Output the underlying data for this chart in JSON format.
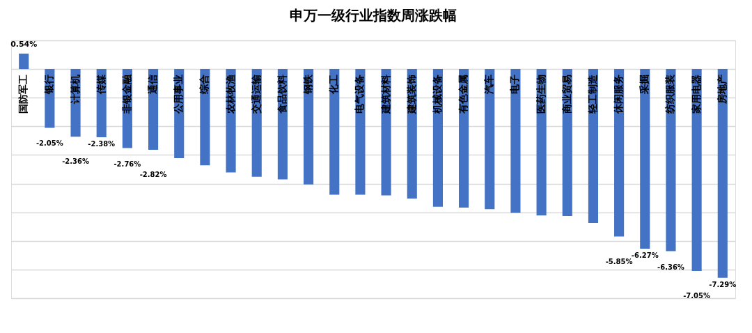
{
  "chart_data": {
    "type": "bar",
    "title": "申万一级行业指数周涨跌幅",
    "categories": [
      "国防军工",
      "银行",
      "计算机",
      "传媒",
      "非银金融",
      "通信",
      "公用事业",
      "综合",
      "农林牧渔",
      "交通运输",
      "食品饮料",
      "钢铁",
      "化工",
      "电气设备",
      "建筑材料",
      "建筑装饰",
      "机械设备",
      "有色金属",
      "汽车",
      "电子",
      "医药生物",
      "商业贸易",
      "轻工制造",
      "休闲服务",
      "采掘",
      "纺织服装",
      "家用电器",
      "房地产"
    ],
    "values": [
      0.54,
      -2.05,
      -2.36,
      -2.38,
      -2.76,
      -2.82,
      -3.11,
      -3.36,
      -3.61,
      -3.76,
      -3.85,
      -4.03,
      -4.39,
      -4.39,
      -4.41,
      -4.52,
      -4.81,
      -4.84,
      -4.89,
      -5.02,
      -5.11,
      -5.13,
      -5.37,
      -5.85,
      -6.27,
      -6.36,
      -7.05,
      -7.29
    ],
    "value_labels": [
      "0.54%",
      "-2.05%",
      "-2.36%",
      "-2.38%",
      "-2.76%",
      "-2.82%",
      null,
      null,
      null,
      null,
      null,
      null,
      null,
      null,
      null,
      null,
      null,
      null,
      null,
      null,
      null,
      null,
      null,
      "-5.85%",
      "-6.27%",
      "-6.36%",
      "-7.05%",
      "-7.29%"
    ],
    "color": "#4472c4",
    "ylim": [
      -8,
      1
    ],
    "yticks": [
      {
        "value": -8,
        "label": null
      },
      {
        "value": -7,
        "label": null
      },
      {
        "value": -6,
        "label": null
      },
      {
        "value": -5,
        "label": null
      },
      {
        "value": -4,
        "label": null
      },
      {
        "value": -3,
        "label": null
      },
      {
        "value": -2,
        "label": null
      },
      {
        "value": -1,
        "label": null
      },
      {
        "value": 0,
        "label": null
      },
      {
        "value": 1,
        "label": null
      }
    ],
    "grid": "y",
    "tick_labels": "x"
  }
}
